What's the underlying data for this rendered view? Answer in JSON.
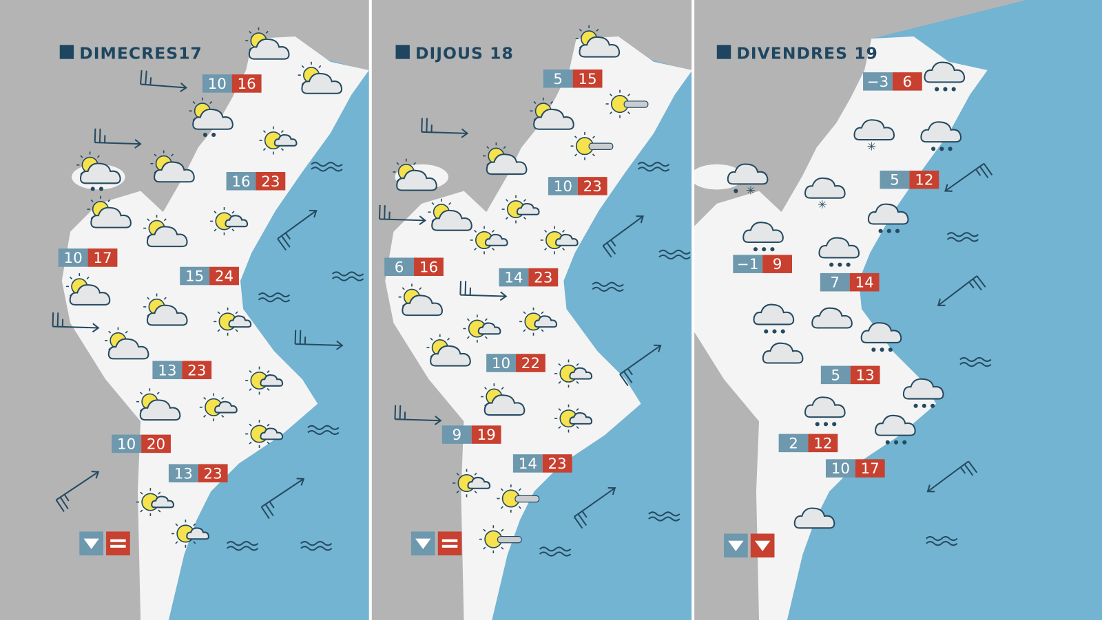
{
  "colors": {
    "land": "#f4f4f4",
    "outside": "#b4b4b4",
    "sea": "#72b4d2",
    "min_box": "#6d98ad",
    "max_box": "#c8402f",
    "ink": "#254a60",
    "sun": "#f6e24d",
    "cloud": "#e4e6e8"
  },
  "panels": [
    {
      "title": "DIMECRES17",
      "temps": [
        {
          "min": "10",
          "max": "16"
        },
        {
          "min": "16",
          "max": "23"
        },
        {
          "min": "10",
          "max": "17"
        },
        {
          "min": "15",
          "max": "24"
        },
        {
          "min": "13",
          "max": "23"
        },
        {
          "min": "10",
          "max": "20"
        },
        {
          "min": "13",
          "max": "23"
        }
      ],
      "icons": [
        "sun-cloud",
        "sun-cloud",
        "sun-cloud-rain",
        "sun-small-cloud",
        "sun-cloud-rain",
        "sun-cloud",
        "sun-cloud",
        "sun-cloud",
        "sun-small-cloud",
        "sun-cloud",
        "sun-cloud",
        "sun-small-cloud",
        "sun-cloud",
        "sun-small-cloud",
        "sun-cloud",
        "sun-small-cloud",
        "sun-small-cloud",
        "sun-small-cloud",
        "sun-small-cloud"
      ],
      "winds": [
        "east",
        "east",
        "east",
        "east",
        "northeast",
        "northeast",
        "northeast"
      ],
      "waves": 6,
      "legend": {
        "min_trend": "down",
        "max_trend": "equal"
      }
    },
    {
      "title": "DIJOUS 18",
      "temps": [
        {
          "min": "5",
          "max": "15"
        },
        {
          "min": "10",
          "max": "23"
        },
        {
          "min": "6",
          "max": "16"
        },
        {
          "min": "14",
          "max": "23"
        },
        {
          "min": "10",
          "max": "22"
        },
        {
          "min": "9",
          "max": "19"
        },
        {
          "min": "14",
          "max": "23"
        }
      ],
      "icons": [
        "sun-cloud",
        "sun-fog",
        "sun-fog",
        "sun-cloud",
        "sun-cloud",
        "sun-cloud",
        "sun-cloud",
        "sun-small-cloud",
        "sun-small-cloud",
        "sun-small-cloud",
        "sun-cloud",
        "sun-small-cloud",
        "sun-small-cloud",
        "sun-cloud",
        "sun-small-cloud",
        "sun-cloud",
        "sun-small-cloud",
        "sun-small-cloud",
        "sun-fog",
        "sun-fog"
      ],
      "winds": [
        "east",
        "east",
        "east",
        "east",
        "northeast",
        "northeast",
        "northeast"
      ],
      "waves": 5,
      "legend": {
        "min_trend": "down",
        "max_trend": "equal"
      }
    },
    {
      "title": "DIVENDRES 19",
      "temps": [
        {
          "min": "−3",
          "max": "6"
        },
        {
          "min": "5",
          "max": "12"
        },
        {
          "min": "−1",
          "max": "9"
        },
        {
          "min": "7",
          "max": "14"
        },
        {
          "min": "5",
          "max": "13"
        },
        {
          "min": "2",
          "max": "12"
        },
        {
          "min": "10",
          "max": "17"
        }
      ],
      "icons": [
        "cloud-rain",
        "cloud-snow",
        "cloud-rain",
        "cloud-sleet",
        "cloud-snow",
        "cloud-rain",
        "cloud-rain",
        "cloud-rain",
        "cloud-rain",
        "cloud",
        "cloud-rain",
        "cloud",
        "cloud-rain",
        "cloud-rain",
        "cloud-rain",
        "cloud"
      ],
      "winds": [
        "southwest",
        "southwest",
        "southwest"
      ],
      "waves": 3,
      "legend": {
        "min_trend": "down",
        "max_trend": "down"
      }
    }
  ]
}
